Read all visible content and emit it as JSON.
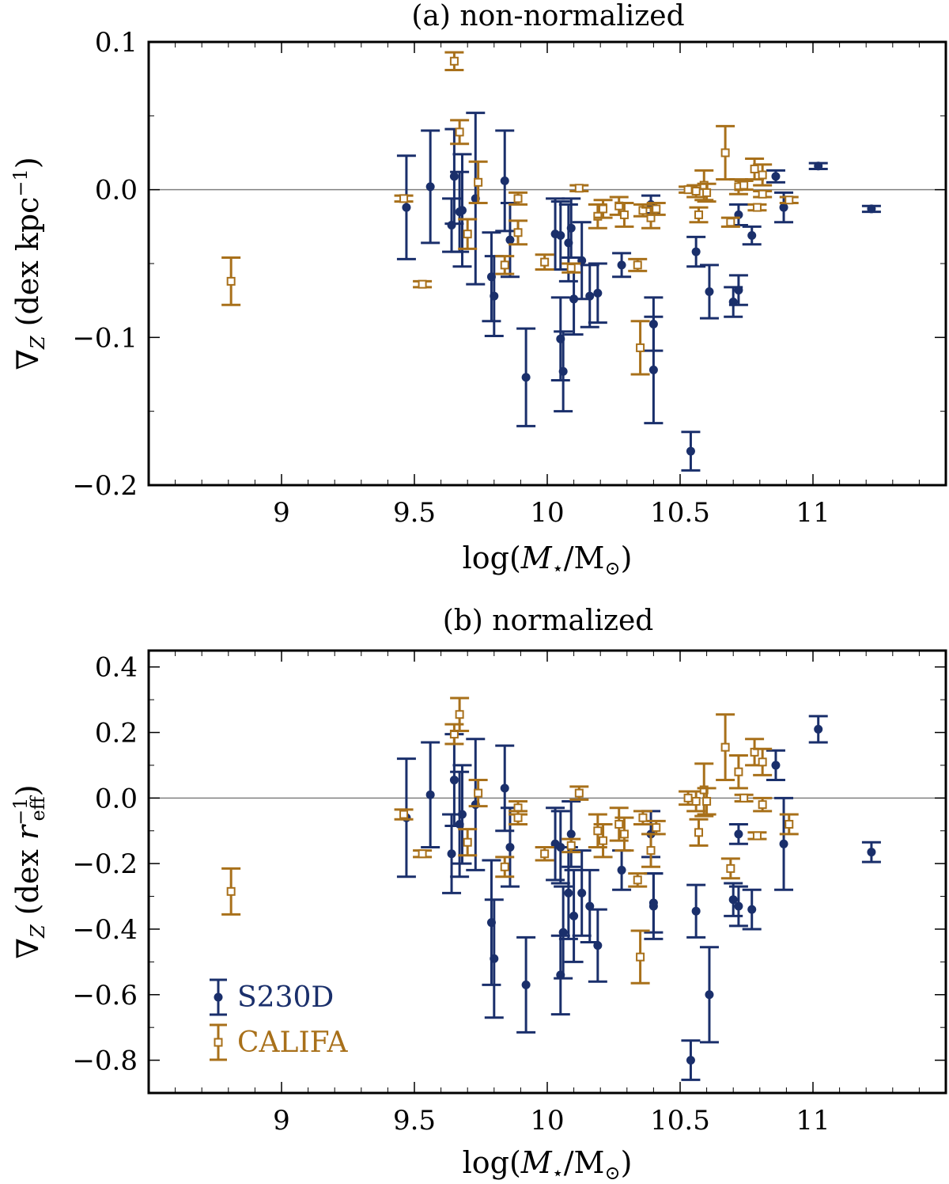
{
  "colors": {
    "s230d": "#1a2f6b",
    "califa": "#a8701a",
    "zero_line": "#808080",
    "axis": "#000000"
  },
  "chart_data": [
    {
      "type": "scatter",
      "title": "(a) non-normalized",
      "xlabel": {
        "pre": "log(",
        "sym": "M",
        "sub": "⋆",
        "mid": "/M",
        "sub2": "⊙",
        "post": ")"
      },
      "ylabel": {
        "sym": "∇",
        "sub": "Z",
        "text": " (dex kpc",
        "sup": "−1",
        "post": ")"
      },
      "xlim": [
        8.5,
        11.5
      ],
      "ylim": [
        -0.2,
        0.1
      ],
      "xticks": [
        9,
        9.5,
        10,
        10.5,
        11
      ],
      "xtick_labels": [
        "9",
        "9.5",
        "10",
        "10.5",
        "11"
      ],
      "yticks": [
        -0.2,
        -0.1,
        0.0,
        0.1
      ],
      "ytick_labels": [
        "−0.2",
        "−0.1",
        "0.0",
        "0.1"
      ],
      "zero_line": 0,
      "series": [
        {
          "name": "S230D",
          "marker": "circle",
          "points": [
            [
              9.47,
              -0.012,
              0.035
            ],
            [
              9.56,
              0.002,
              0.038
            ],
            [
              9.64,
              -0.024,
              0.018
            ],
            [
              9.65,
              0.009,
              0.032
            ],
            [
              9.67,
              -0.015,
              0.027
            ],
            [
              9.68,
              -0.014,
              0.038
            ],
            [
              9.73,
              -0.006,
              0.058
            ],
            [
              9.79,
              -0.059,
              0.03
            ],
            [
              9.8,
              -0.072,
              0.027
            ],
            [
              9.84,
              0.006,
              0.034
            ],
            [
              9.86,
              -0.034,
              0.025
            ],
            [
              9.92,
              -0.127,
              0.033
            ],
            [
              10.03,
              -0.03,
              0.024
            ],
            [
              10.05,
              -0.031,
              0.023
            ],
            [
              10.05,
              -0.101,
              0.028
            ],
            [
              10.06,
              -0.123,
              0.027
            ],
            [
              10.08,
              -0.036,
              0.026
            ],
            [
              10.09,
              -0.026,
              0.02
            ],
            [
              10.1,
              -0.074,
              0.024
            ],
            [
              10.13,
              -0.048,
              0.026
            ],
            [
              10.16,
              -0.072,
              0.021
            ],
            [
              10.19,
              -0.07,
              0.02
            ],
            [
              10.28,
              -0.051,
              0.008
            ],
            [
              10.39,
              -0.01,
              0.006
            ],
            [
              10.4,
              -0.091,
              0.018
            ],
            [
              10.4,
              -0.122,
              0.036
            ],
            [
              10.54,
              -0.177,
              0.013
            ],
            [
              10.56,
              -0.042,
              0.01
            ],
            [
              10.61,
              -0.069,
              0.018
            ],
            [
              10.7,
              -0.076,
              0.01
            ],
            [
              10.72,
              -0.068,
              0.01
            ],
            [
              10.72,
              -0.017,
              0.007
            ],
            [
              10.77,
              -0.031,
              0.006
            ],
            [
              10.86,
              0.009,
              0.004
            ],
            [
              10.89,
              -0.012,
              0.01
            ],
            [
              11.02,
              0.016,
              0.002
            ],
            [
              11.22,
              -0.013,
              0.002
            ]
          ]
        },
        {
          "name": "CALIFA",
          "marker": "square-open",
          "points": [
            [
              8.81,
              -0.062,
              0.016
            ],
            [
              9.46,
              -0.006,
              0.002
            ],
            [
              9.53,
              -0.064,
              0.002
            ],
            [
              9.65,
              0.087,
              0.006
            ],
            [
              9.67,
              0.039,
              0.008
            ],
            [
              9.7,
              -0.03,
              0.01
            ],
            [
              9.74,
              0.005,
              0.014
            ],
            [
              9.84,
              -0.051,
              0.006
            ],
            [
              9.89,
              -0.006,
              0.004
            ],
            [
              9.89,
              -0.029,
              0.008
            ],
            [
              9.99,
              -0.049,
              0.005
            ],
            [
              10.09,
              -0.053,
              0.003
            ],
            [
              10.12,
              0.001,
              0.002
            ],
            [
              10.19,
              -0.018,
              0.008
            ],
            [
              10.21,
              -0.013,
              0.006
            ],
            [
              10.27,
              -0.011,
              0.006
            ],
            [
              10.29,
              -0.017,
              0.008
            ],
            [
              10.34,
              -0.051,
              0.004
            ],
            [
              10.35,
              -0.107,
              0.018
            ],
            [
              10.36,
              -0.014,
              0.004
            ],
            [
              10.39,
              -0.019,
              0.007
            ],
            [
              10.41,
              -0.013,
              0.004
            ],
            [
              10.53,
              0.0,
              0.002
            ],
            [
              10.56,
              -0.001,
              0.004
            ],
            [
              10.57,
              -0.017,
              0.005
            ],
            [
              10.59,
              0.003,
              0.01
            ],
            [
              10.6,
              -0.002,
              0.006
            ],
            [
              10.67,
              0.025,
              0.018
            ],
            [
              10.69,
              -0.022,
              0.003
            ],
            [
              10.72,
              0.002,
              0.005
            ],
            [
              10.74,
              0.003,
              0.003
            ],
            [
              10.78,
              0.014,
              0.007
            ],
            [
              10.79,
              -0.012,
              0.002
            ],
            [
              10.81,
              -0.003,
              0.002
            ],
            [
              10.81,
              0.01,
              0.007
            ],
            [
              10.91,
              -0.007,
              0.002
            ]
          ]
        }
      ]
    },
    {
      "type": "scatter",
      "title": "(b) normalized",
      "xlabel": {
        "pre": "log(",
        "sym": "M",
        "sub": "⋆",
        "mid": "/M",
        "sub2": "⊙",
        "post": ")"
      },
      "ylabel": {
        "sym": "∇",
        "sub": "Z",
        "text": " (dex r",
        "sub3": "eff",
        "sup": "−1",
        "post": ")"
      },
      "xlim": [
        8.5,
        11.5
      ],
      "ylim": [
        -0.9,
        0.45
      ],
      "xticks": [
        9,
        9.5,
        10,
        10.5,
        11
      ],
      "xtick_labels": [
        "9",
        "9.5",
        "10",
        "10.5",
        "11"
      ],
      "yticks": [
        -0.8,
        -0.6,
        -0.4,
        -0.2,
        0.0,
        0.2,
        0.4
      ],
      "ytick_labels": [
        "−0.8",
        "−0.6",
        "−0.4",
        "−0.2",
        "0.0",
        "0.2",
        "0.4"
      ],
      "zero_line": 0,
      "legend": {
        "position": "lower-left",
        "entries": [
          "S230D",
          "CALIFA"
        ]
      },
      "series": [
        {
          "name": "S230D",
          "marker": "circle",
          "points": [
            [
              9.47,
              -0.06,
              0.18
            ],
            [
              9.56,
              0.01,
              0.16
            ],
            [
              9.64,
              -0.17,
              0.12
            ],
            [
              9.65,
              0.055,
              0.14
            ],
            [
              9.67,
              -0.08,
              0.16
            ],
            [
              9.68,
              -0.05,
              0.15
            ],
            [
              9.73,
              -0.02,
              0.2
            ],
            [
              9.79,
              -0.38,
              0.19
            ],
            [
              9.8,
              -0.49,
              0.18
            ],
            [
              9.84,
              0.03,
              0.13
            ],
            [
              9.86,
              -0.15,
              0.12
            ],
            [
              9.92,
              -0.57,
              0.145
            ],
            [
              10.03,
              -0.14,
              0.11
            ],
            [
              10.05,
              -0.15,
              0.11
            ],
            [
              10.05,
              -0.54,
              0.12
            ],
            [
              10.06,
              -0.41,
              0.14
            ],
            [
              10.08,
              -0.29,
              0.14
            ],
            [
              10.09,
              -0.11,
              0.1
            ],
            [
              10.1,
              -0.36,
              0.14
            ],
            [
              10.13,
              -0.29,
              0.13
            ],
            [
              10.16,
              -0.33,
              0.11
            ],
            [
              10.19,
              -0.45,
              0.11
            ],
            [
              10.28,
              -0.22,
              0.06
            ],
            [
              10.39,
              -0.11,
              0.07
            ],
            [
              10.4,
              -0.32,
              0.09
            ],
            [
              10.4,
              -0.33,
              0.1
            ],
            [
              10.54,
              -0.8,
              0.06
            ],
            [
              10.56,
              -0.345,
              0.08
            ],
            [
              10.61,
              -0.6,
              0.145
            ],
            [
              10.7,
              -0.31,
              0.05
            ],
            [
              10.72,
              -0.33,
              0.06
            ],
            [
              10.72,
              -0.11,
              0.03
            ],
            [
              10.77,
              -0.34,
              0.06
            ],
            [
              10.86,
              0.1,
              0.045
            ],
            [
              10.89,
              -0.14,
              0.14
            ],
            [
              11.02,
              0.21,
              0.04
            ],
            [
              11.22,
              -0.165,
              0.03
            ]
          ]
        },
        {
          "name": "CALIFA",
          "marker": "square-open",
          "points": [
            [
              8.81,
              -0.285,
              0.07
            ],
            [
              9.46,
              -0.05,
              0.015
            ],
            [
              9.53,
              -0.17,
              0.01
            ],
            [
              9.65,
              0.195,
              0.03
            ],
            [
              9.67,
              0.255,
              0.05
            ],
            [
              9.7,
              -0.135,
              0.04
            ],
            [
              9.74,
              0.015,
              0.04
            ],
            [
              9.84,
              -0.21,
              0.03
            ],
            [
              9.89,
              -0.03,
              0.02
            ],
            [
              9.89,
              -0.06,
              0.02
            ],
            [
              9.99,
              -0.17,
              0.02
            ],
            [
              10.09,
              -0.145,
              0.02
            ],
            [
              10.12,
              0.015,
              0.02
            ],
            [
              10.19,
              -0.1,
              0.05
            ],
            [
              10.21,
              -0.13,
              0.05
            ],
            [
              10.27,
              -0.08,
              0.05
            ],
            [
              10.29,
              -0.11,
              0.05
            ],
            [
              10.34,
              -0.25,
              0.02
            ],
            [
              10.35,
              -0.485,
              0.08
            ],
            [
              10.36,
              -0.06,
              0.02
            ],
            [
              10.39,
              -0.16,
              0.05
            ],
            [
              10.41,
              -0.09,
              0.02
            ],
            [
              10.53,
              0.0,
              0.02
            ],
            [
              10.56,
              -0.01,
              0.03
            ],
            [
              10.57,
              -0.105,
              0.04
            ],
            [
              10.59,
              0.025,
              0.08
            ],
            [
              10.6,
              -0.01,
              0.04
            ],
            [
              10.67,
              0.155,
              0.1
            ],
            [
              10.69,
              -0.215,
              0.03
            ],
            [
              10.72,
              0.08,
              0.05
            ],
            [
              10.74,
              0.0,
              0.01
            ],
            [
              10.78,
              0.14,
              0.04
            ],
            [
              10.79,
              -0.115,
              0.01
            ],
            [
              10.81,
              -0.02,
              0.02
            ],
            [
              10.81,
              0.11,
              0.04
            ],
            [
              10.91,
              -0.08,
              0.03
            ]
          ]
        }
      ]
    }
  ]
}
